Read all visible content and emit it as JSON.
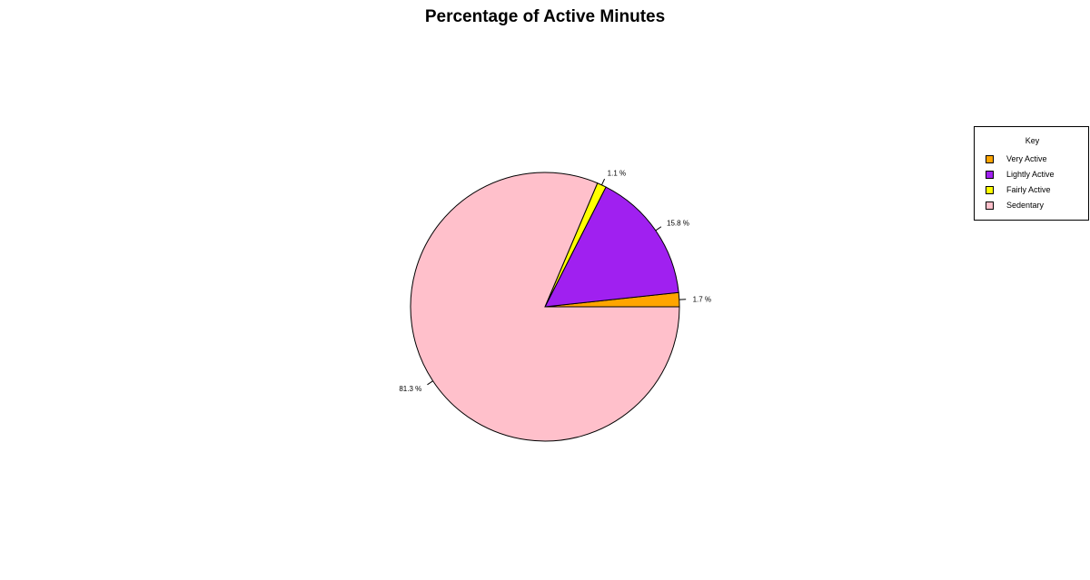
{
  "chart_data": {
    "type": "pie",
    "title": "Percentage of Active Minutes",
    "legend_title": "Key",
    "legend_position": "right",
    "slices": [
      {
        "name": "Very Active",
        "value": 1.7,
        "label": "1.7 %",
        "color": "#FFA500"
      },
      {
        "name": "Lightly Active",
        "value": 15.8,
        "label": "15.8 %",
        "color": "#A020F0"
      },
      {
        "name": "Fairly Active",
        "value": 1.1,
        "label": "1.1 %",
        "color": "#FFFF00"
      },
      {
        "name": "Sedentary",
        "value": 81.3,
        "label": "81.3 %",
        "color": "#FFC0CB"
      }
    ]
  }
}
